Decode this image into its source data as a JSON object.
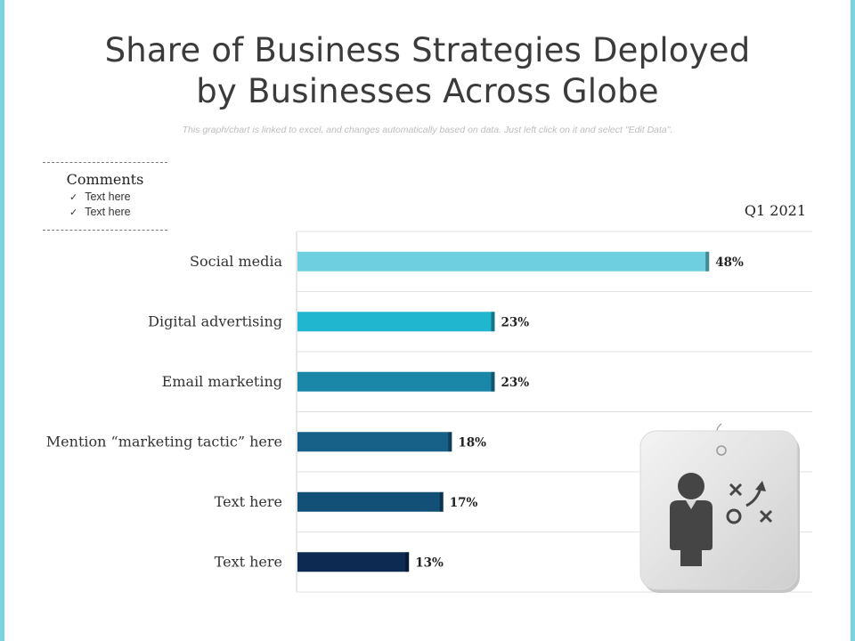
{
  "title_line1": "Share of Business Strategies Deployed",
  "title_line2": "by Businesses Across Globe",
  "subtitle": "This graph/chart is linked to excel, and changes automatically based on data. Just left click on it and select \"Edit Data\".",
  "comments": {
    "title": "Comments",
    "items": [
      "Text here",
      "Text here"
    ]
  },
  "icon": "strategy-person-icon",
  "chart_data": {
    "type": "bar",
    "orientation": "horizontal",
    "title": "Share of Business Strategies Deployed by Businesses Across Globe",
    "series": [
      {
        "name": "Q1 2021",
        "values": [
          48,
          23,
          23,
          18,
          17,
          13
        ]
      }
    ],
    "categories": [
      "Social media",
      "Digital advertising",
      "Email marketing",
      "Mention “marketing tactic” here",
      "Text here",
      "Text here"
    ],
    "value_labels": [
      "48%",
      "23%",
      "23%",
      "18%",
      "17%",
      "13%"
    ],
    "unit": "%",
    "xlim": [
      0,
      60
    ],
    "grid": "horizontal row separators",
    "legend": "top-right",
    "colors": [
      "#6ecfe0",
      "#21b6d0",
      "#1a86a8",
      "#176088",
      "#135078",
      "#0c2a52"
    ]
  }
}
